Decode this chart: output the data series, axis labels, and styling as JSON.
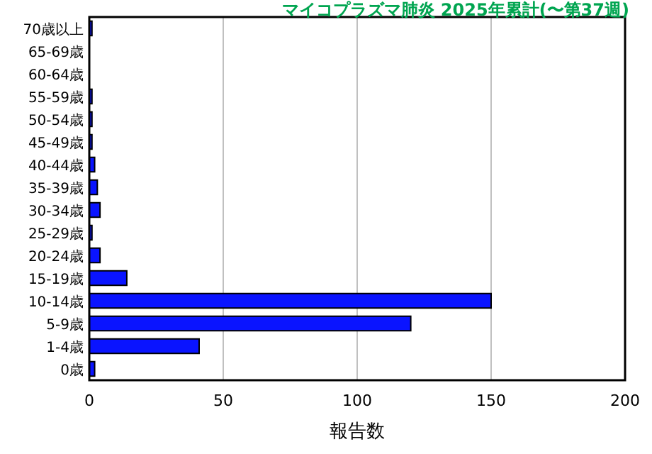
{
  "chart_data": {
    "type": "bar",
    "orientation": "horizontal",
    "title": "マイコプラズマ肺炎 2025年累計(〜第37週)",
    "xlabel": "報告数",
    "categories": [
      "70歳以上",
      "65-69歳",
      "60-64歳",
      "55-59歳",
      "50-54歳",
      "45-49歳",
      "40-44歳",
      "35-39歳",
      "30-34歳",
      "25-29歳",
      "20-24歳",
      "15-19歳",
      "10-14歳",
      "5-9歳",
      "1-4歳",
      "0歳"
    ],
    "values": [
      1,
      0,
      0,
      1,
      1,
      1,
      2,
      3,
      4,
      1,
      4,
      14,
      150,
      120,
      41,
      2
    ],
    "color": "#0a14ff",
    "xlim": [
      0,
      200
    ],
    "xticks": [
      0,
      50,
      100,
      150,
      200
    ],
    "grid": "x"
  }
}
